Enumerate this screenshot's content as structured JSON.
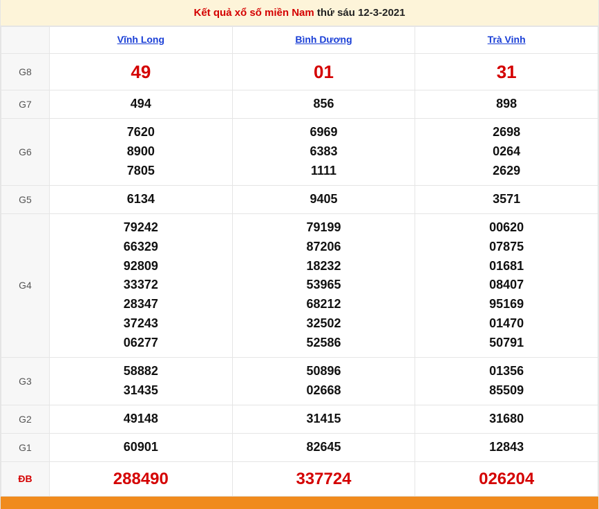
{
  "title": {
    "prefix": "Kết quả xổ số miền Nam",
    "suffix": " thứ sáu 12-3-2021"
  },
  "provinces": [
    "Vĩnh Long",
    "Bình Dương",
    "Trà Vinh"
  ],
  "rows": [
    {
      "label": "G8",
      "class": "g8",
      "values": [
        [
          "49"
        ],
        [
          "01"
        ],
        [
          "31"
        ]
      ]
    },
    {
      "label": "G7",
      "class": "",
      "values": [
        [
          "494"
        ],
        [
          "856"
        ],
        [
          "898"
        ]
      ]
    },
    {
      "label": "G6",
      "class": "",
      "values": [
        [
          "7620",
          "8900",
          "7805"
        ],
        [
          "6969",
          "6383",
          "1111"
        ],
        [
          "2698",
          "0264",
          "2629"
        ]
      ]
    },
    {
      "label": "G5",
      "class": "",
      "values": [
        [
          "6134"
        ],
        [
          "9405"
        ],
        [
          "3571"
        ]
      ]
    },
    {
      "label": "G4",
      "class": "",
      "values": [
        [
          "79242",
          "66329",
          "92809",
          "33372",
          "28347",
          "37243",
          "06277"
        ],
        [
          "79199",
          "87206",
          "18232",
          "53965",
          "68212",
          "32502",
          "52586"
        ],
        [
          "00620",
          "07875",
          "01681",
          "08407",
          "95169",
          "01470",
          "50791"
        ]
      ]
    },
    {
      "label": "G3",
      "class": "",
      "values": [
        [
          "58882",
          "31435"
        ],
        [
          "50896",
          "02668"
        ],
        [
          "01356",
          "85509"
        ]
      ]
    },
    {
      "label": "G2",
      "class": "",
      "values": [
        [
          "49148"
        ],
        [
          "31415"
        ],
        [
          "31680"
        ]
      ]
    },
    {
      "label": "G1",
      "class": "",
      "values": [
        [
          "60901"
        ],
        [
          "82645"
        ],
        [
          "12843"
        ]
      ]
    },
    {
      "label": "ĐB",
      "class": "db",
      "values": [
        [
          "288490"
        ],
        [
          "337724"
        ],
        [
          "026204"
        ]
      ]
    }
  ],
  "colors": {
    "header_bg": "#fdf4d9",
    "border": "#e5e5e5",
    "label_bg": "#f7f7f7",
    "link": "#1a3fd6",
    "highlight": "#d40000",
    "footer": "#f08b1d"
  }
}
